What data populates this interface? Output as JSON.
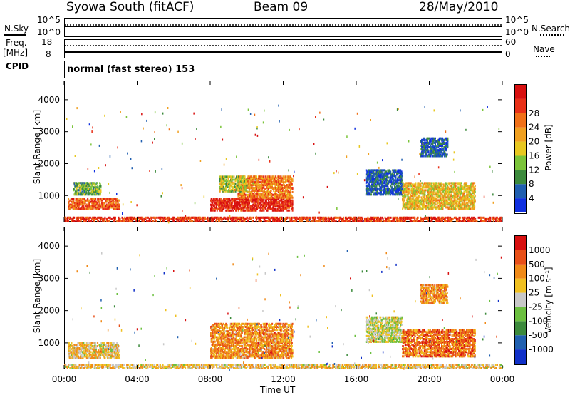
{
  "header": {
    "station": "Syowa South (fitACF)",
    "beam": "Beam 09",
    "date": "28/May/2010"
  },
  "top_panels": {
    "nsky_label": "N.Sky",
    "nsearch_label": "N.Search",
    "freq_label": "Freq.",
    "freq_unit": "[MHz]",
    "nave_label": "Nave",
    "cpid_label": "CPID",
    "noise_ticks_left": [
      "10^5",
      "10^0"
    ],
    "noise_ticks_right": [
      "10^5",
      "10^0"
    ],
    "freq_ticks_left": [
      "18",
      "8"
    ],
    "nave_ticks_right": [
      "60",
      "0"
    ],
    "cpid_text": "normal (fast stereo) 153"
  },
  "time_axis": {
    "label": "Time UT",
    "ticks": [
      "00:00",
      "04:00",
      "08:00",
      "12:00",
      "16:00",
      "20:00",
      "00:00"
    ]
  },
  "chart_data": [
    {
      "type": "heatmap",
      "title": "",
      "ylabel": "Slant Range [km]",
      "xlabel": "",
      "ylim": [
        180,
        4600
      ],
      "yticks": [
        "1000",
        "2000",
        "3000",
        "4000"
      ],
      "colorbar_label": "Power [dB]",
      "colorbar_ticks": [
        "4",
        "8",
        "12",
        "16",
        "20",
        "24",
        "28"
      ],
      "colors": [
        "#1030e0",
        "#205fb0",
        "#3c8a3c",
        "#7bc43a",
        "#e8c820",
        "#f0a020",
        "#f07018",
        "#e83018",
        "#d81010"
      ],
      "regions": [
        {
          "t": [
            0.2,
            3.0
          ],
          "r": [
            550,
            900
          ],
          "level": 0.75
        },
        {
          "t": [
            0.5,
            2.0
          ],
          "r": [
            1000,
            1400
          ],
          "level": 0.35
        },
        {
          "t": [
            8.0,
            12.5
          ],
          "r": [
            500,
            900
          ],
          "level": 0.9
        },
        {
          "t": [
            9.5,
            12.5
          ],
          "r": [
            900,
            1600
          ],
          "level": 0.7
        },
        {
          "t": [
            8.5,
            10.0
          ],
          "r": [
            1100,
            1600
          ],
          "level": 0.45
        },
        {
          "t": [
            16.5,
            18.5
          ],
          "r": [
            1000,
            1800
          ],
          "level": 0.15
        },
        {
          "t": [
            18.5,
            22.5
          ],
          "r": [
            550,
            1400
          ],
          "level": 0.55
        },
        {
          "t": [
            19.5,
            21.0
          ],
          "r": [
            2200,
            2800
          ],
          "level": 0.15
        },
        {
          "t": [
            0.0,
            24.0
          ],
          "r": [
            180,
            320
          ],
          "level": 0.85
        }
      ]
    },
    {
      "type": "heatmap",
      "title": "",
      "ylabel": "Slant Range [km]",
      "xlabel": "Time UT",
      "ylim": [
        180,
        4600
      ],
      "yticks": [
        "1000",
        "2000",
        "3000",
        "4000"
      ],
      "colorbar_label": "Velocity [m s⁻¹]",
      "colorbar_ticks": [
        "1000",
        "500",
        "100",
        "25",
        "-25",
        "-100",
        "-500",
        "-1000"
      ],
      "colors": [
        "#1030c8",
        "#2060b0",
        "#3c8a3c",
        "#6cc040",
        "#c8c8c8",
        "#f0c020",
        "#f08a18",
        "#e85018",
        "#d81010"
      ],
      "regions": [
        {
          "t": [
            0.2,
            3.0
          ],
          "r": [
            500,
            1000
          ],
          "level": 0.6
        },
        {
          "t": [
            8.0,
            12.5
          ],
          "r": [
            500,
            1600
          ],
          "level": 0.72
        },
        {
          "t": [
            16.5,
            18.5
          ],
          "r": [
            1000,
            1800
          ],
          "level": 0.5
        },
        {
          "t": [
            18.5,
            22.5
          ],
          "r": [
            550,
            1400
          ],
          "level": 0.78
        },
        {
          "t": [
            19.5,
            21.0
          ],
          "r": [
            2200,
            2800
          ],
          "level": 0.7
        },
        {
          "t": [
            0.0,
            24.0
          ],
          "r": [
            180,
            320
          ],
          "level": 0.6
        }
      ]
    }
  ]
}
